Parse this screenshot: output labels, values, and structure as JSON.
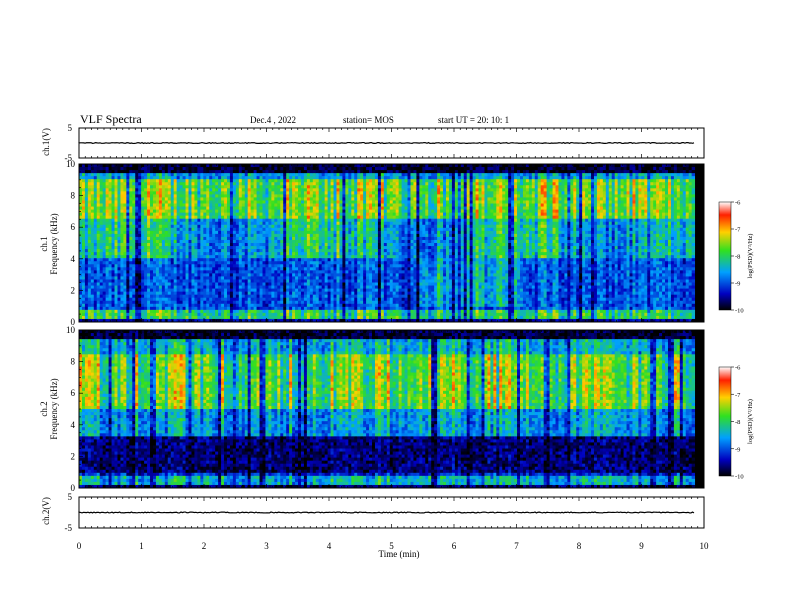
{
  "header": {
    "title": "VLF Spectra",
    "date": "Dec.4 , 2022",
    "station": "station= MOS",
    "start_ut": "start UT =  20: 10: 1"
  },
  "axes": {
    "xlabel": "Time (min)",
    "xticks": [
      "0",
      "1",
      "2",
      "3",
      "4",
      "5",
      "6",
      "7",
      "8",
      "9",
      "10"
    ],
    "wave1_label": "ch.1(V)",
    "wave2_label": "ch.2(V)",
    "wave_ticks": [
      "5",
      "-5"
    ],
    "spec1_label_a": "ch.1",
    "spec1_label_b": "Frequency (kHz)",
    "spec2_label_a": "ch.2",
    "spec2_label_b": "Frequency (kHz)",
    "freq_ticks": [
      "0",
      "2",
      "4",
      "6",
      "8",
      "10"
    ]
  },
  "colorbar": {
    "label": "log(PSD)(V²/Hz)",
    "ticks": [
      "-6",
      "-7",
      "-8",
      "-9",
      "-10"
    ],
    "colors": [
      "#ffffff",
      "#ff2000",
      "#ffd000",
      "#30e020",
      "#00a0ff",
      "#0000c0",
      "#000000"
    ]
  },
  "chart_data": [
    {
      "type": "line",
      "name": "ch.1 waveform",
      "xlim": [
        0,
        10
      ],
      "ylim": [
        -5,
        5
      ],
      "baseline": 0
    },
    {
      "type": "heatmap",
      "name": "ch.1 spectrogram",
      "xlim": [
        0,
        10
      ],
      "ylim": [
        0,
        10
      ],
      "data_end_min": 9.85,
      "zlim": [
        -10,
        -6
      ]
    },
    {
      "type": "heatmap",
      "name": "ch.2 spectrogram",
      "xlim": [
        0,
        10
      ],
      "ylim": [
        0,
        10
      ],
      "data_end_min": 9.85,
      "zlim": [
        -10,
        -6
      ]
    },
    {
      "type": "line",
      "name": "ch.2 waveform",
      "xlim": [
        0,
        10
      ],
      "ylim": [
        -5,
        5
      ],
      "baseline": 0
    }
  ]
}
